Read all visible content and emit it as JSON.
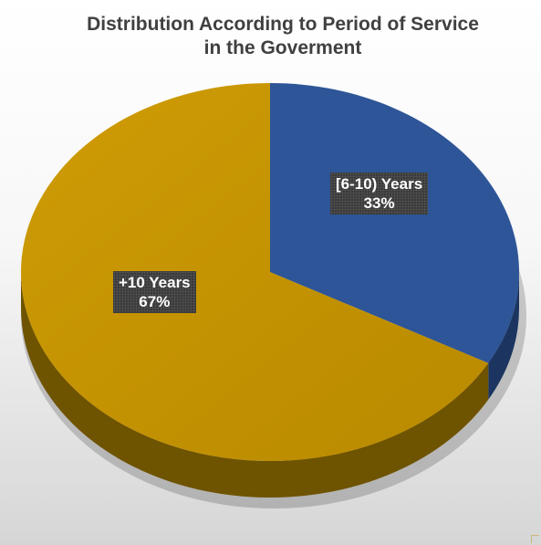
{
  "chart_data": {
    "type": "pie",
    "title_lines": [
      "Distribution According to Period of Service",
      "in the Goverment"
    ],
    "slices": [
      {
        "name": "[6-10) Years",
        "percent_label": "33%",
        "value": 33,
        "color": "#2e5597",
        "side_color": "#1b3560"
      },
      {
        "name": "+10 Years",
        "percent_label": "67%",
        "value": 67,
        "color": "#c59300",
        "side_color": "#6e5300"
      }
    ],
    "start_angle_deg": 0,
    "direction": "clockwise",
    "legend": "none",
    "style": "3d"
  }
}
